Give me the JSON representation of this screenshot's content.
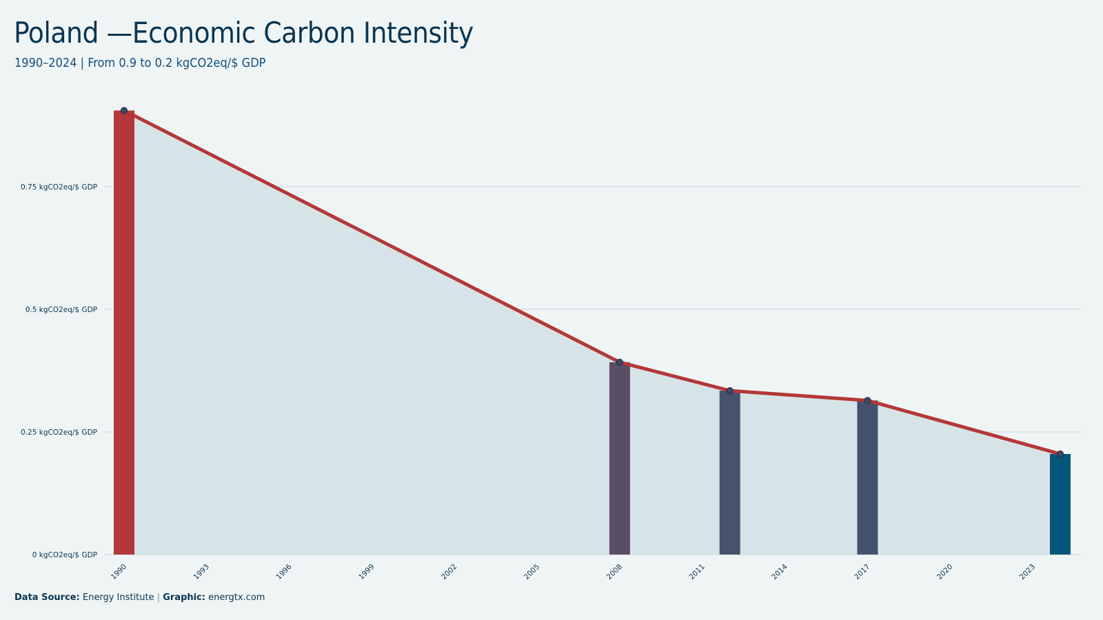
{
  "header": {
    "title": "Poland —Economic Carbon Intensity",
    "subtitle": "1990–2024 | From 0.9 to 0.2 kgCO2eq/$ GDP"
  },
  "footer": {
    "source_label": "Data Source:",
    "source_value": "Energy Institute",
    "separator": "|",
    "graphic_label": "Graphic:",
    "graphic_value": "energtx.com"
  },
  "colors": {
    "background": "#eff5f5",
    "area_fill": "#d7e4e7",
    "line": "#b53737",
    "grid": "#cdd9dc",
    "point": "#3d4a63"
  },
  "chart_data": {
    "type": "line",
    "xlim": [
      1990,
      2024
    ],
    "ylim": [
      0,
      0.9
    ],
    "x_ticks": [
      1990,
      1993,
      1996,
      1999,
      2002,
      2005,
      2008,
      2011,
      2014,
      2017,
      2020,
      2023
    ],
    "y_ticks": [
      {
        "value": 0,
        "label": "0 kgCO2eq/$ GDP"
      },
      {
        "value": 0.25,
        "label": "0.25 kgCO2eq/$ GDP"
      },
      {
        "value": 0.5,
        "label": "0.5 kgCO2eq/$ GDP"
      },
      {
        "value": 0.75,
        "label": "0.75 kgCO2eq/$ GDP"
      }
    ],
    "grid": true,
    "series": [
      {
        "type": "line-area",
        "points": [
          {
            "x": 1990,
            "y": 0.905
          },
          {
            "x": 2008,
            "y": 0.392
          },
          {
            "x": 2012,
            "y": 0.334
          },
          {
            "x": 2017,
            "y": 0.314
          },
          {
            "x": 2024,
            "y": 0.205
          }
        ]
      }
    ],
    "highlight_bars": [
      {
        "x": 1990,
        "y": 0.905,
        "color": "#b53737"
      },
      {
        "x": 2008,
        "y": 0.392,
        "color": "#5a4d66"
      },
      {
        "x": 2012,
        "y": 0.334,
        "color": "#47526d"
      },
      {
        "x": 2017,
        "y": 0.314,
        "color": "#43516e"
      },
      {
        "x": 2024,
        "y": 0.205,
        "color": "#04577a"
      }
    ]
  }
}
